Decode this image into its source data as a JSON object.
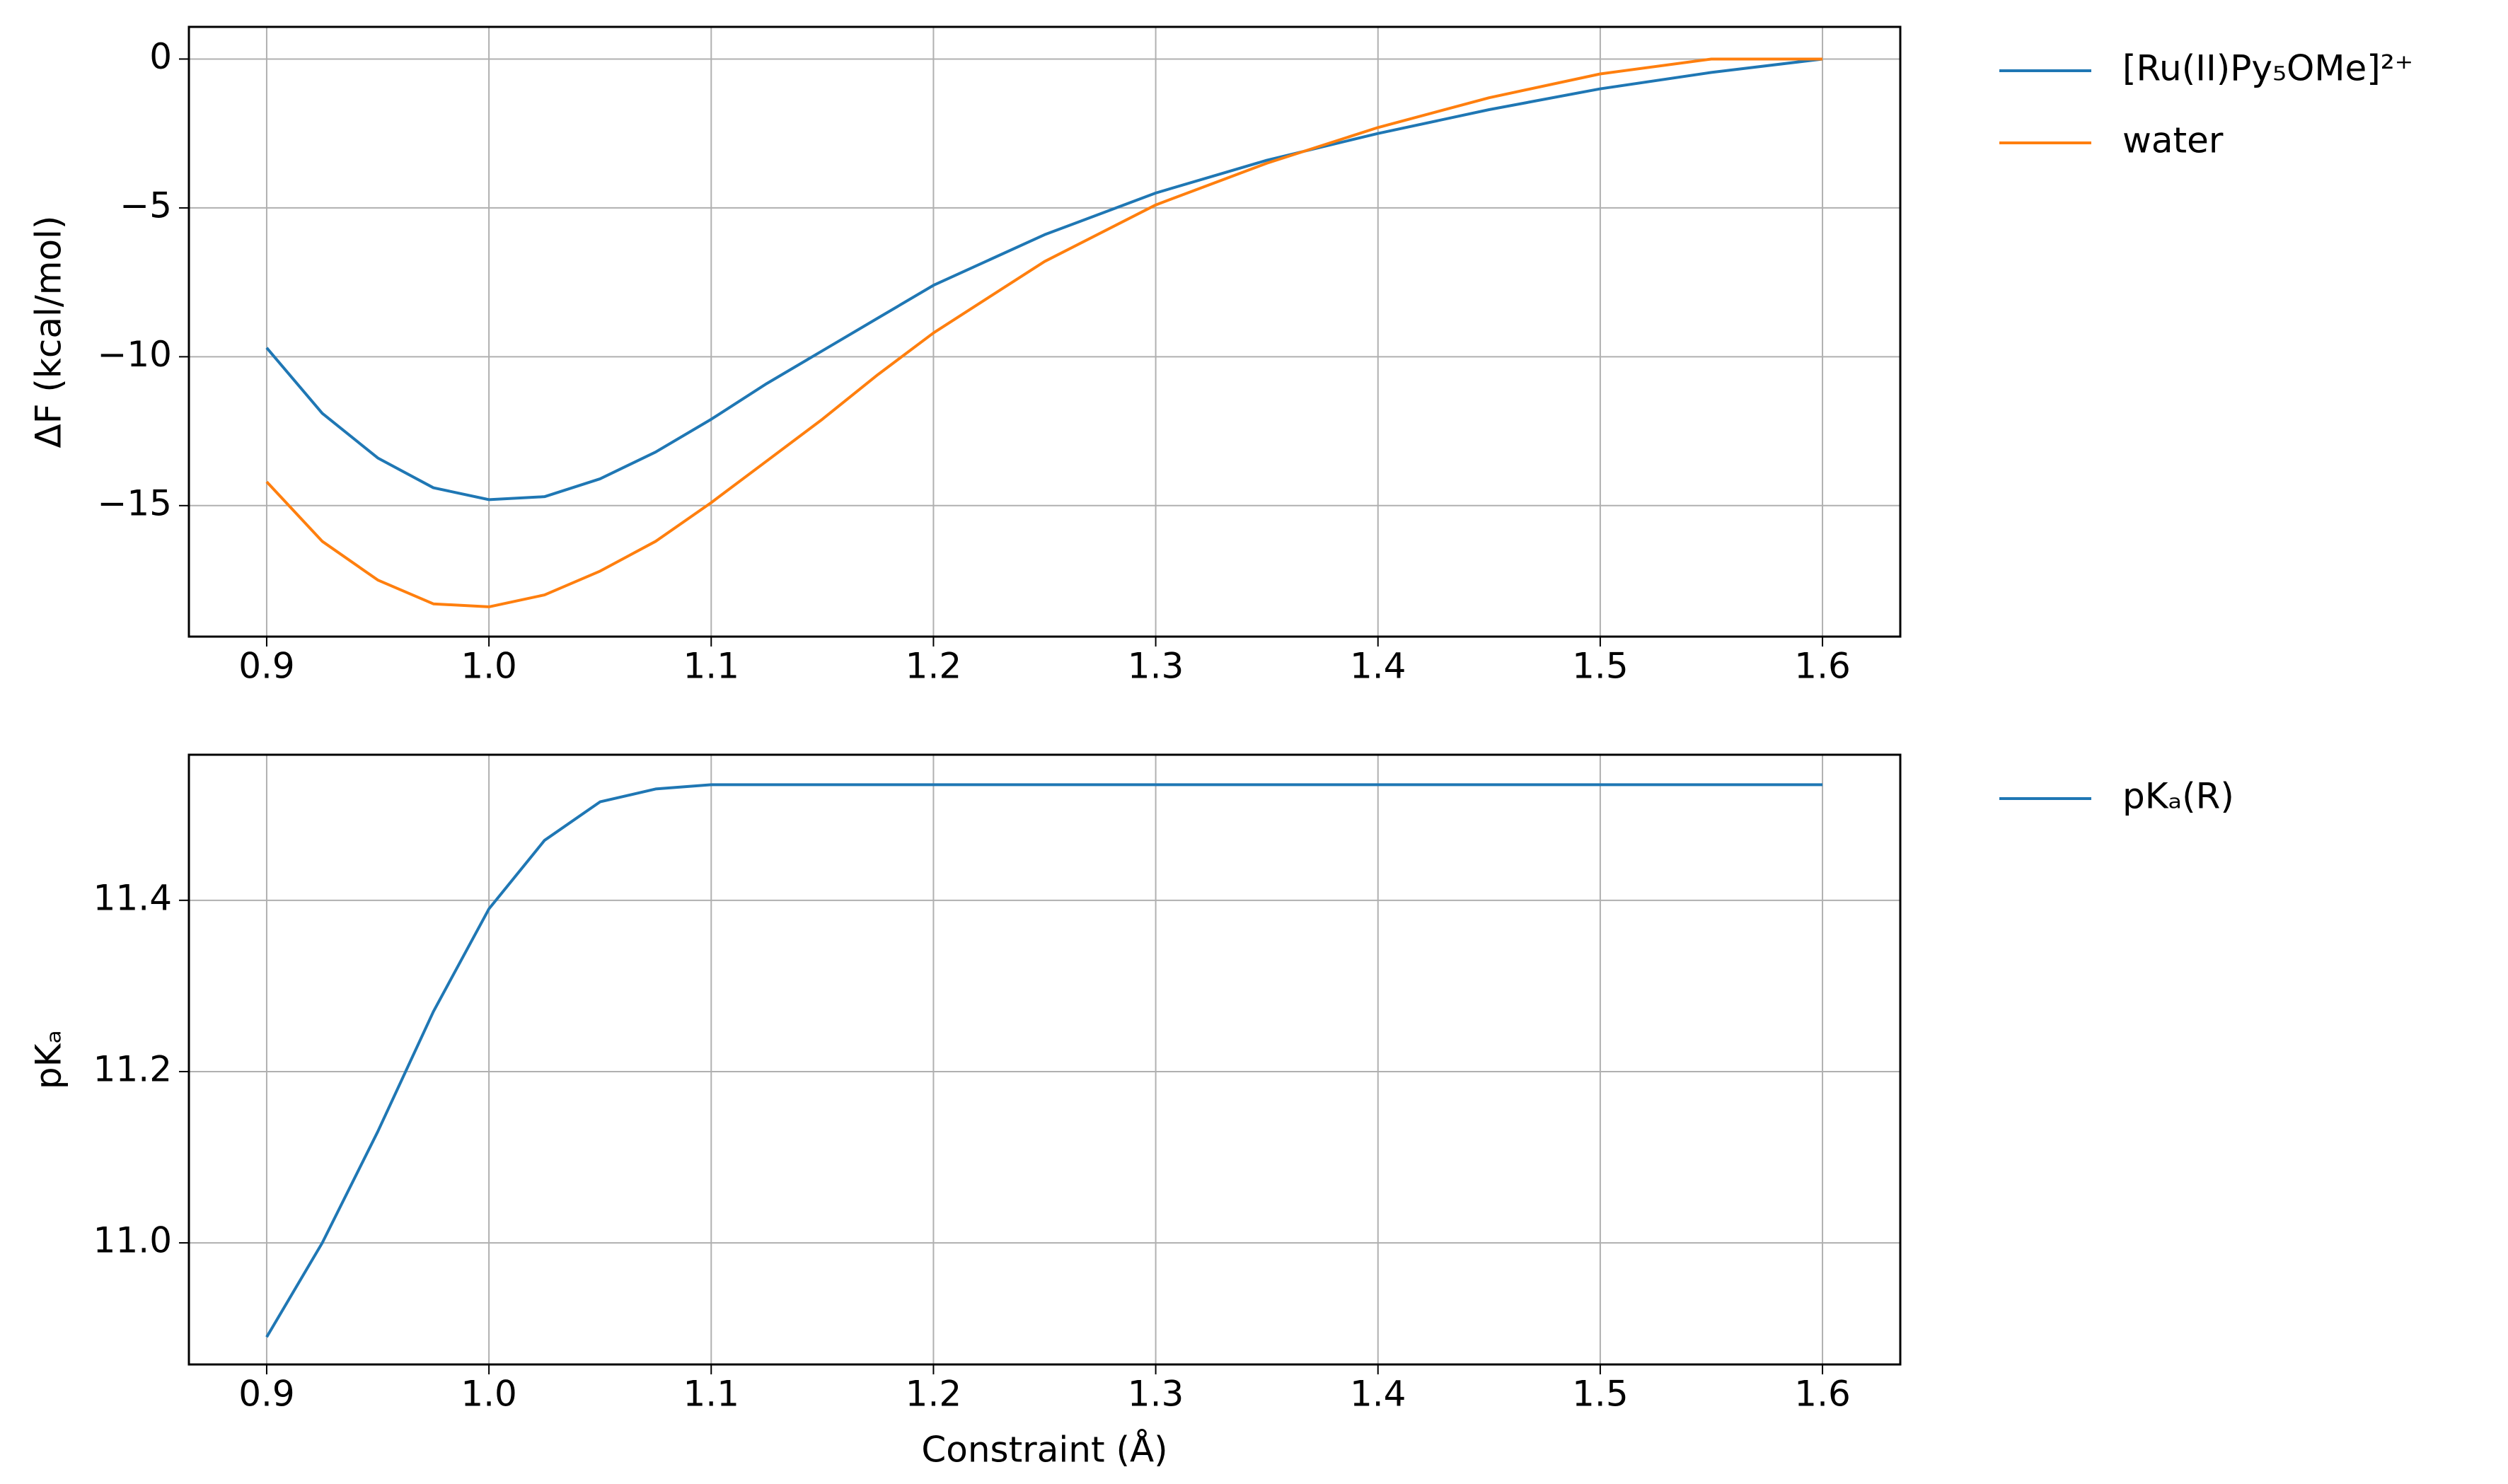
{
  "chart_data": [
    {
      "type": "line",
      "ylabel": "ΔF (kcal/mol)",
      "x": [
        0.9,
        0.925,
        0.95,
        0.975,
        1.0,
        1.025,
        1.05,
        1.075,
        1.1,
        1.125,
        1.15,
        1.175,
        1.2,
        1.25,
        1.3,
        1.35,
        1.4,
        1.45,
        1.5,
        1.55,
        1.6
      ],
      "series": [
        {
          "name": "[Ru(II)Py₅OMe]²⁺",
          "color": "#1f77b4",
          "values": [
            -9.7,
            -11.9,
            -13.4,
            -14.4,
            -14.8,
            -14.7,
            -14.1,
            -13.2,
            -12.1,
            -10.9,
            -9.8,
            -8.7,
            -7.6,
            -5.9,
            -4.5,
            -3.4,
            -2.5,
            -1.7,
            -1.0,
            -0.45,
            0
          ]
        },
        {
          "name": "water",
          "color": "#ff7f0e",
          "values": [
            -14.2,
            -16.2,
            -17.5,
            -18.3,
            -18.4,
            -18.0,
            -17.2,
            -16.2,
            -14.9,
            -13.5,
            -12.1,
            -10.6,
            -9.2,
            -6.8,
            -4.9,
            -3.5,
            -2.3,
            -1.3,
            -0.5,
            0.0,
            0
          ]
        }
      ],
      "xlim": [
        0.865,
        1.635
      ],
      "xticks": [
        0.9,
        {
          "value": 1.0,
          "label": "1.0"
        },
        1.1,
        1.2,
        1.3,
        1.4,
        1.5,
        1.6
      ],
      "ylim": [
        -19.4,
        1.08
      ],
      "yticks": [
        {
          "value": -15,
          "label": "−15"
        },
        {
          "value": -10,
          "label": "−10"
        },
        {
          "value": -5,
          "label": "−5"
        },
        0
      ],
      "grid": true,
      "legend": "outside-right"
    },
    {
      "type": "line",
      "ylabel": "pKₐ",
      "xlabel": "Constraint  (Å)",
      "x": [
        0.9,
        0.925,
        0.95,
        0.975,
        1.0,
        1.025,
        1.05,
        1.075,
        1.1,
        1.125,
        1.15,
        1.175,
        1.2,
        1.25,
        1.3,
        1.35,
        1.4,
        1.45,
        1.5,
        1.55,
        1.6
      ],
      "series": [
        {
          "name": "pKₐ(R)",
          "color": "#1f77b4",
          "values": [
            10.89,
            11.0,
            11.13,
            11.27,
            11.39,
            11.47,
            11.515,
            11.53,
            11.535,
            11.535,
            11.535,
            11.535,
            11.535,
            11.535,
            11.535,
            11.535,
            11.535,
            11.535,
            11.535,
            11.535,
            11.535
          ]
        }
      ],
      "xlim": [
        0.865,
        1.635
      ],
      "xticks": [
        0.9,
        {
          "value": 1.0,
          "label": "1.0"
        },
        1.1,
        1.2,
        1.3,
        1.4,
        1.5,
        1.6
      ],
      "ylim": [
        10.858,
        11.57
      ],
      "yticks": [
        {
          "value": 11.0,
          "label": "11.0"
        },
        11.2,
        11.4
      ],
      "grid": true,
      "legend": "outside-right"
    }
  ]
}
